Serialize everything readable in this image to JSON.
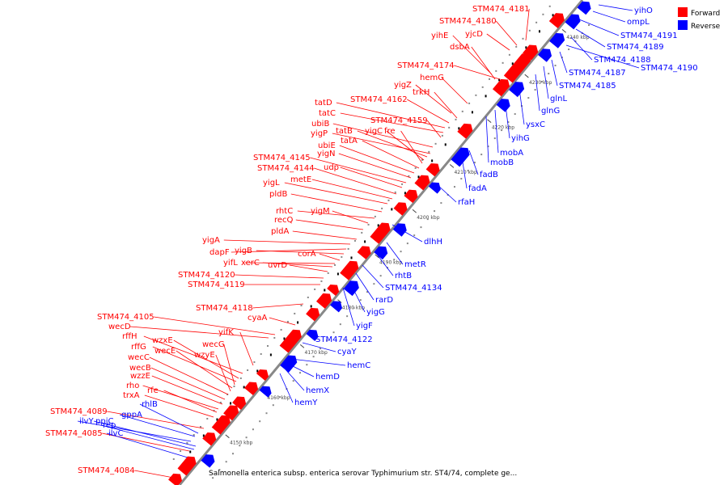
{
  "title": "Salmonella enterica subsp. enterica serovar Typhimurium str. ST4/74, complete ge...",
  "legend": [
    {
      "label": "Forward",
      "color": "#ff0000"
    },
    {
      "label": "Reverse",
      "color": "#0000ff"
    }
  ],
  "colors": {
    "forward": "#ff0000",
    "reverse": "#0000ff",
    "backbone": "#888888"
  },
  "ticks": [
    {
      "kbp": 4150,
      "label": "4150 kbp"
    },
    {
      "kbp": 4160,
      "label": "4160 kbp"
    },
    {
      "kbp": 4170,
      "label": "4170 kbp"
    },
    {
      "kbp": 4180,
      "label": "4180 kbp"
    },
    {
      "kbp": 4190,
      "label": "4190 kbp"
    },
    {
      "kbp": 4200,
      "label": "4200 kbp"
    },
    {
      "kbp": 4210,
      "label": "4210 kbp"
    },
    {
      "kbp": 4220,
      "label": "4220 kbp"
    },
    {
      "kbp": 4230,
      "label": "4230 kbp"
    },
    {
      "kbp": 4240,
      "label": "4240 kbp"
    }
  ],
  "forward_labels": [
    "STM474_4181",
    "STM474_4180",
    "yjcD",
    "yihE",
    "dsbA",
    "STM474_4174",
    "hemG",
    "yigZ",
    "trkH",
    "STM474_4162",
    "tatD",
    "tatC",
    "STM474_4159",
    "ubiB",
    "yigP",
    "tatB",
    "yigC",
    "fre",
    "tatA",
    "ubiE",
    "yigN",
    "STM474_4145",
    "udp",
    "STM474_4144",
    "metE",
    "yigL",
    "pldB",
    "rhtC",
    "yigM",
    "recQ",
    "pldA",
    "yigA",
    "dapF",
    "yigB",
    "corA",
    "yifL",
    "xerC",
    "uvrD",
    "STM474_4120",
    "STM474_4119",
    "STM474_4118",
    "cyaA",
    "STM474_4105",
    "wecD",
    "yifK",
    "rffH",
    "wzxE",
    "rffG",
    "wecG",
    "wecE",
    "wzyE",
    "wecC",
    "wecB",
    "wzzE",
    "rho",
    "rfe",
    "trxA",
    "STM474_4089",
    "STM474_4085",
    "STM474_4084"
  ],
  "reverse_labels": [
    "yihO",
    "ompL",
    "STM474_4191",
    "STM474_4189",
    "STM474_4188",
    "STM474_4190",
    "STM474_4187",
    "STM474_4185",
    "glnL",
    "glnG",
    "ysxC",
    "yihG",
    "mobA",
    "mobB",
    "fadB",
    "fadA",
    "rfaH",
    "dlhH",
    "metR",
    "rhtB",
    "STM474_4134",
    "rarD",
    "yigG",
    "yigF",
    "STM474_4122",
    "cyaY",
    "hemC",
    "hemD",
    "hemX",
    "hemY",
    "rhlB",
    "gppA",
    "ilvY",
    "ppiC",
    "rep",
    "ilvC"
  ]
}
